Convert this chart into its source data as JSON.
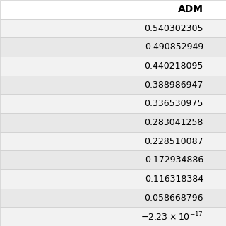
{
  "header": "ADM",
  "values": [
    "0.540302305",
    "0.490852949",
    "0.440218095",
    "0.388986947",
    "0.336530975",
    "0.283041258",
    "0.228510087",
    "0.172934886",
    "0.116318384",
    "0.058668796",
    "-2.23×10⁻¹⁷"
  ],
  "alt_row_color": "#e8e8e8",
  "white_row_color": "#f2f2f2",
  "header_bg": "#ffffff",
  "header_color": "#000000",
  "text_color": "#000000",
  "bg_color": "#ffffff",
  "fig_width": 3.2,
  "fig_height": 3.2,
  "dpi": 100
}
